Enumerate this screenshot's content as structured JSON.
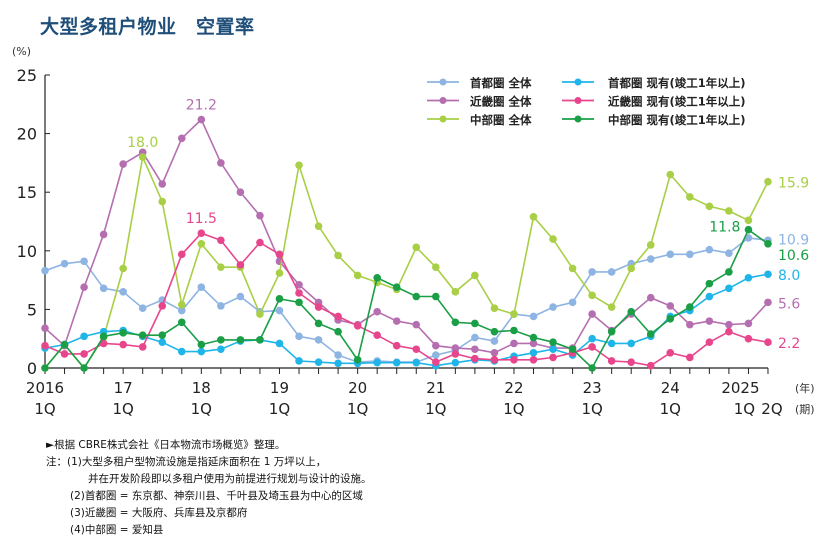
{
  "title": "大型多租户物业　空置率",
  "chart_data": {
    "type": "line",
    "ylabel": "(%)",
    "ylim": [
      0,
      25
    ],
    "yticks": [
      0,
      5,
      10,
      15,
      20,
      25
    ],
    "x_unit_year": "(年)",
    "x_unit_quarter": "(期)",
    "x_quarters": [
      "2016 1Q",
      "2016 2Q",
      "2016 3Q",
      "2016 4Q",
      "2017 1Q",
      "2017 2Q",
      "2017 3Q",
      "2017 4Q",
      "2018 1Q",
      "2018 2Q",
      "2018 3Q",
      "2018 4Q",
      "2019 1Q",
      "2019 2Q",
      "2019 3Q",
      "2019 4Q",
      "2020 1Q",
      "2020 2Q",
      "2020 3Q",
      "2020 4Q",
      "2021 1Q",
      "2021 2Q",
      "2021 3Q",
      "2021 4Q",
      "2022 1Q",
      "2022 2Q",
      "2022 3Q",
      "2022 4Q",
      "2023 1Q",
      "2023 2Q",
      "2023 3Q",
      "2023 4Q",
      "2024 1Q",
      "2024 2Q",
      "2024 3Q",
      "2024 4Q",
      "2025 1Q",
      "2025 2Q"
    ],
    "xtick_labels": [
      {
        "index": 0,
        "year": "2016",
        "quarter": "1Q"
      },
      {
        "index": 4,
        "year": "17",
        "quarter": "1Q"
      },
      {
        "index": 8,
        "year": "18",
        "quarter": "1Q"
      },
      {
        "index": 12,
        "year": "19",
        "quarter": "1Q"
      },
      {
        "index": 16,
        "year": "20",
        "quarter": "1Q"
      },
      {
        "index": 20,
        "year": "21",
        "quarter": "1Q"
      },
      {
        "index": 24,
        "year": "22",
        "quarter": "1Q"
      },
      {
        "index": 28,
        "year": "23",
        "quarter": "1Q"
      },
      {
        "index": 32,
        "year": "24",
        "quarter": "1Q"
      },
      {
        "index": 36,
        "year": "2025",
        "quarter": "1Q"
      },
      {
        "index": 37,
        "year": "",
        "quarter": "2Q"
      }
    ],
    "grid": false,
    "legend_position": "top-right",
    "series": [
      {
        "name": "首都圈 全体",
        "color": "#8db4e2",
        "values": [
          8.3,
          8.9,
          9.1,
          6.8,
          6.5,
          5.1,
          5.8,
          4.9,
          6.9,
          5.3,
          6.1,
          4.8,
          4.9,
          2.7,
          2.4,
          1.1,
          0.5,
          0.6,
          0.5,
          0.5,
          1.1,
          1.5,
          2.6,
          2.3,
          4.6,
          4.4,
          5.2,
          5.6,
          8.2,
          8.2,
          8.9,
          9.3,
          9.7,
          9.7,
          10.1,
          9.8,
          11.1,
          10.9
        ],
        "labels": [
          {
            "index": 37,
            "text": "10.9"
          }
        ]
      },
      {
        "name": "近畿圈 全体",
        "color": "#b56fb0",
        "values": [
          3.4,
          1.9,
          6.9,
          11.4,
          17.4,
          18.4,
          15.7,
          19.6,
          21.2,
          17.5,
          15.0,
          13.0,
          9.1,
          7.1,
          5.6,
          4.1,
          3.7,
          4.8,
          4.0,
          3.7,
          1.9,
          1.7,
          1.6,
          1.3,
          2.1,
          2.1,
          1.7,
          1.7,
          4.6,
          3.2,
          4.6,
          6.0,
          5.3,
          3.7,
          4.0,
          3.7,
          3.8,
          5.6
        ],
        "labels": [
          {
            "index": 8,
            "text": "21.2"
          },
          {
            "index": 37,
            "text": "5.6"
          }
        ]
      },
      {
        "name": "中部圈 全体",
        "color": "#a8cf45",
        "values": [
          0,
          2.0,
          0,
          2.6,
          8.5,
          18.0,
          14.2,
          5.4,
          10.6,
          8.6,
          8.6,
          4.6,
          8.1,
          17.3,
          12.1,
          9.6,
          7.9,
          7.3,
          6.7,
          10.3,
          8.6,
          6.5,
          7.9,
          5.1,
          4.6,
          12.9,
          11.0,
          8.5,
          6.2,
          5.2,
          8.5,
          10.5,
          16.5,
          14.6,
          13.8,
          13.4,
          12.6,
          15.9
        ],
        "labels": [
          {
            "index": 5,
            "text": "18.0"
          },
          {
            "index": 37,
            "text": "15.9"
          }
        ]
      },
      {
        "name": "首都圈 现有(竣工1年以上)",
        "color": "#1fb5e9",
        "values": [
          1.7,
          2.0,
          2.7,
          3.1,
          3.2,
          2.7,
          2.2,
          1.4,
          1.4,
          1.6,
          2.3,
          2.4,
          2.1,
          0.6,
          0.5,
          0.4,
          0.4,
          0.45,
          0.45,
          0.45,
          0.2,
          0.45,
          0.7,
          0.6,
          1.0,
          1.3,
          1.6,
          1.1,
          2.5,
          2.1,
          2.1,
          2.7,
          4.4,
          4.9,
          6.1,
          6.8,
          7.7,
          8.0
        ],
        "labels": [
          {
            "index": 37,
            "text": "8.0"
          }
        ]
      },
      {
        "name": "近畿圈 现有(竣工1年以上)",
        "color": "#e8468c",
        "values": [
          1.9,
          1.2,
          1.2,
          2.1,
          2.0,
          1.8,
          5.3,
          9.7,
          11.5,
          10.9,
          8.8,
          10.7,
          9.7,
          6.4,
          5.2,
          4.4,
          3.6,
          2.8,
          1.9,
          1.6,
          0.5,
          1.2,
          0.8,
          0.7,
          0.7,
          0.7,
          0.9,
          1.3,
          1.8,
          0.6,
          0.5,
          0.2,
          1.3,
          0.9,
          2.2,
          3.1,
          2.5,
          2.2
        ],
        "labels": [
          {
            "index": 8,
            "text": "11.5"
          },
          {
            "index": 37,
            "text": "2.2"
          }
        ]
      },
      {
        "name": "中部圈 现有(竣工1年以上)",
        "color": "#1a9e46",
        "values": [
          0,
          2.0,
          0,
          2.7,
          3.0,
          2.8,
          2.8,
          3.9,
          2.0,
          2.4,
          2.4,
          2.4,
          5.9,
          5.6,
          3.8,
          3.1,
          0.7,
          7.7,
          6.9,
          6.1,
          6.1,
          3.9,
          3.8,
          3.1,
          3.2,
          2.6,
          2.2,
          1.6,
          0,
          3.1,
          4.8,
          2.9,
          4.2,
          5.2,
          7.2,
          8.2,
          11.8,
          10.6
        ],
        "labels": [
          {
            "index": 36,
            "text": "11.8"
          },
          {
            "index": 37,
            "text": "10.6"
          }
        ]
      }
    ]
  },
  "notes": {
    "source": "►根据 CBRE株式会社《日本物流市场概览》整理。",
    "note1": "注：(1)大型多租户型物流设施是指延床面积在 1 万坪以上，",
    "note1b": "并在开发阶段即以多租户使用为前提进行规划与设计的设施。",
    "note2": "(2)首都圈 = 东京都、神奈川县、千叶县及埼玉县为中心的区域",
    "note3": "(3)近畿圈 = 大阪府、兵库县及京都府",
    "note4": "(4)中部圈 = 爱知县"
  }
}
